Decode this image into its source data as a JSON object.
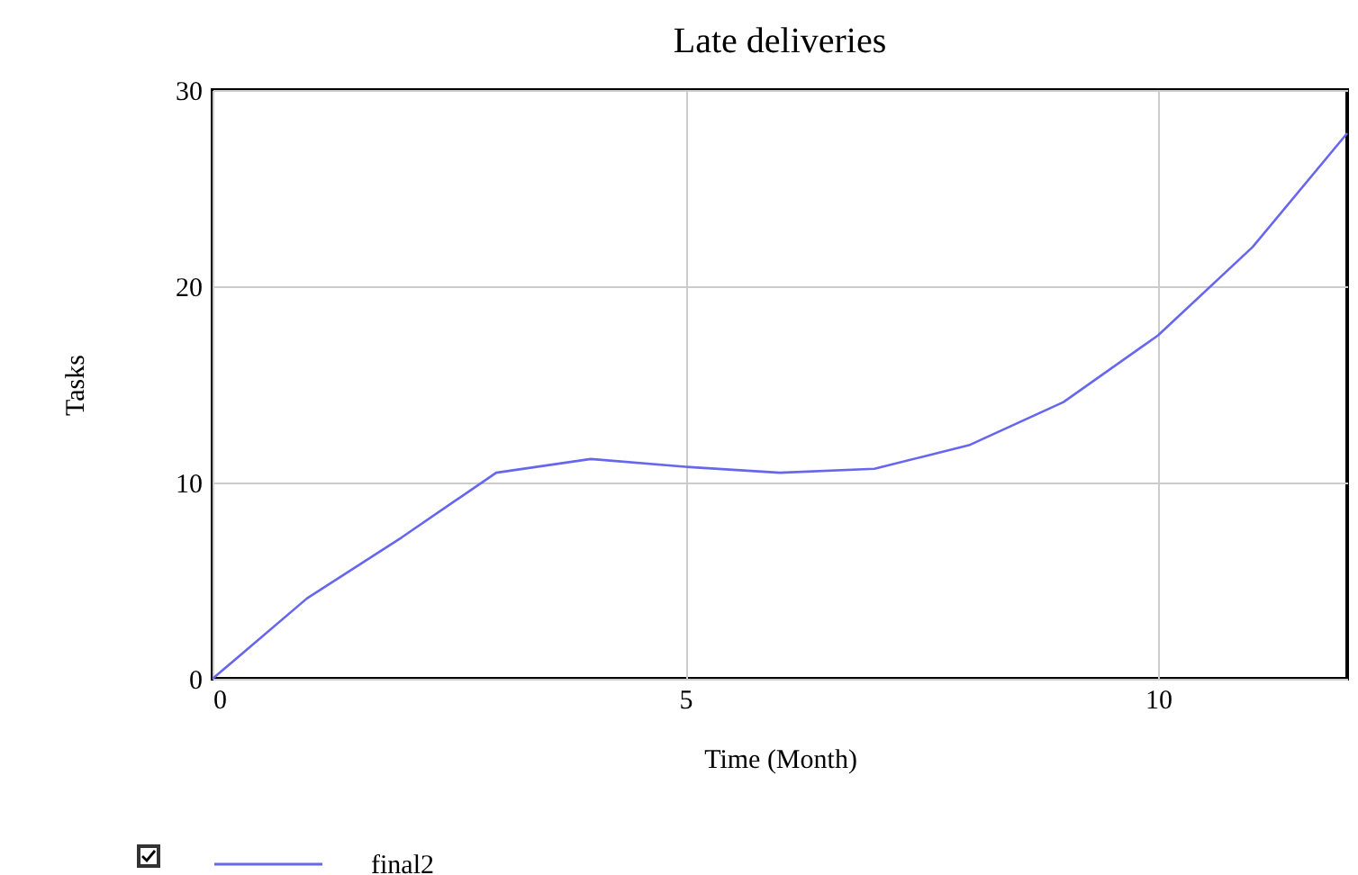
{
  "chart_data": {
    "type": "line",
    "title": "Late deliveries",
    "xlabel": "Time (Month)",
    "ylabel": "Tasks",
    "x": [
      0,
      1,
      2,
      3,
      4,
      5,
      6,
      7,
      8,
      9,
      10,
      11,
      12
    ],
    "series": [
      {
        "name": "final2",
        "color": "#6666ee",
        "values": [
          0,
          4.1,
          7.2,
          10.5,
          11.2,
          10.8,
          10.5,
          10.7,
          11.9,
          14.1,
          17.5,
          22,
          27.8
        ]
      }
    ],
    "xlim": [
      0,
      12
    ],
    "xticks": [
      0,
      5,
      10
    ],
    "ylim": [
      0,
      30
    ],
    "yticks": [
      0,
      10,
      20,
      30
    ],
    "grid": true,
    "legend": "bottom left",
    "marker": "none",
    "line_style": "solid"
  }
}
